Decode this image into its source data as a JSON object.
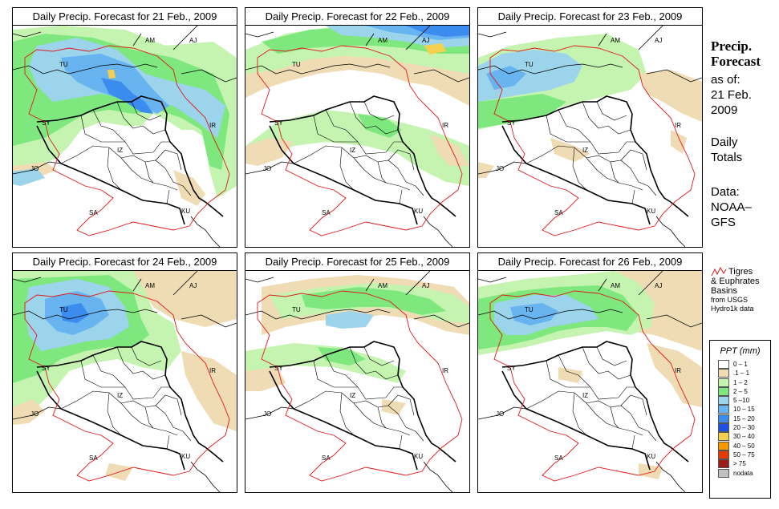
{
  "panels": [
    {
      "title": "Daily Precip. Forecast for  21 Feb., 2009"
    },
    {
      "title": "Daily Precip. Forecast for  22 Feb., 2009"
    },
    {
      "title": "Daily Precip. Forecast for  23 Feb., 2009"
    },
    {
      "title": "Daily Precip. Forecast for  24 Feb., 2009"
    },
    {
      "title": "Daily Precip. Forecast for  25 Feb., 2009"
    },
    {
      "title": "Daily Precip. Forecast for  26 Feb., 2009"
    }
  ],
  "country_labels": {
    "AM": "AM",
    "AJ": "AJ",
    "TU": "TU",
    "SY": "SY",
    "IR": "IR",
    "JO": "JO",
    "SA": "SA",
    "KU": "KU",
    "IZ": "IZ"
  },
  "sidebar": {
    "title_line1": "Precip.",
    "title_line2": "Forecast",
    "asof": "as of:",
    "date_line1": "21 Feb.",
    "date_line2": "2009",
    "daily_line1": "Daily",
    "daily_line2": "Totals",
    "data_line1": "Data:",
    "data_line2": "NOAA–",
    "data_line3": "GFS",
    "basin_line1": "Tigres",
    "basin_line2": "& Euphrates",
    "basin_line3": "Basins",
    "basin_line4": "from USGS",
    "basin_line5": "Hydro1k data"
  },
  "legend": {
    "title": "PPT (mm)",
    "items": [
      {
        "label": "0 – 1",
        "color": "#ffffff"
      },
      {
        "label": ".1 – 1",
        "color": "#f0dcb4"
      },
      {
        "label": "1 – 2",
        "color": "#c4f4b0"
      },
      {
        "label": "2 – 5",
        "color": "#7ee87e"
      },
      {
        "label": "5 –10",
        "color": "#9cd4ec"
      },
      {
        "label": "10 – 15",
        "color": "#68b4f0"
      },
      {
        "label": "15 – 20",
        "color": "#3c8cf0"
      },
      {
        "label": "20 – 30",
        "color": "#1c50e0"
      },
      {
        "label": "30 – 40",
        "color": "#f4d050"
      },
      {
        "label": "40 – 50",
        "color": "#f49a00"
      },
      {
        "label": "50 – 75",
        "color": "#e43c00"
      },
      {
        "label": "> 75",
        "color": "#9c1c1c"
      },
      {
        "label": "nodata",
        "color": "#c0c0c0"
      }
    ]
  },
  "precip_colors": {
    "light": "#f0dcb4",
    "pale_green": "#c4f4b0",
    "green": "#7ee87e",
    "light_blue": "#9cd4ec",
    "blue": "#68b4f0",
    "mid_blue": "#3c8cf0",
    "dark_blue": "#1c50e0",
    "yellow": "#f4d050"
  }
}
